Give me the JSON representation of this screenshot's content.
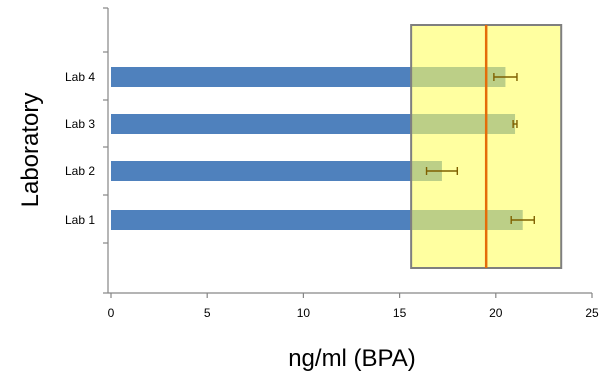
{
  "chart_data": {
    "type": "bar",
    "orientation": "horizontal",
    "categories": [
      "Lab 1",
      "Lab 2",
      "Lab 3",
      "Lab 4"
    ],
    "values": [
      21.4,
      17.2,
      21.0,
      20.5
    ],
    "error_bars": [
      {
        "low": 20.8,
        "high": 22.0
      },
      {
        "low": 16.4,
        "high": 18.0
      },
      {
        "low": 20.9,
        "high": 21.1
      },
      {
        "low": 19.9,
        "high": 21.1
      }
    ],
    "xlabel": "ng/ml (BPA)",
    "ylabel": "Laboratory",
    "xlim": [
      0,
      25
    ],
    "x_ticks": [
      "0",
      "5",
      "10",
      "15",
      "20",
      "25"
    ],
    "reference_band": {
      "low": 15.6,
      "high": 23.4
    },
    "reference_line": 19.5,
    "grid": false,
    "colors": {
      "bar": "#4f81bd",
      "band_fill": "#ffff66",
      "band_border": "#7f7f7f",
      "reference_line": "#e46c0a",
      "error_bar": "#7f6000"
    }
  }
}
